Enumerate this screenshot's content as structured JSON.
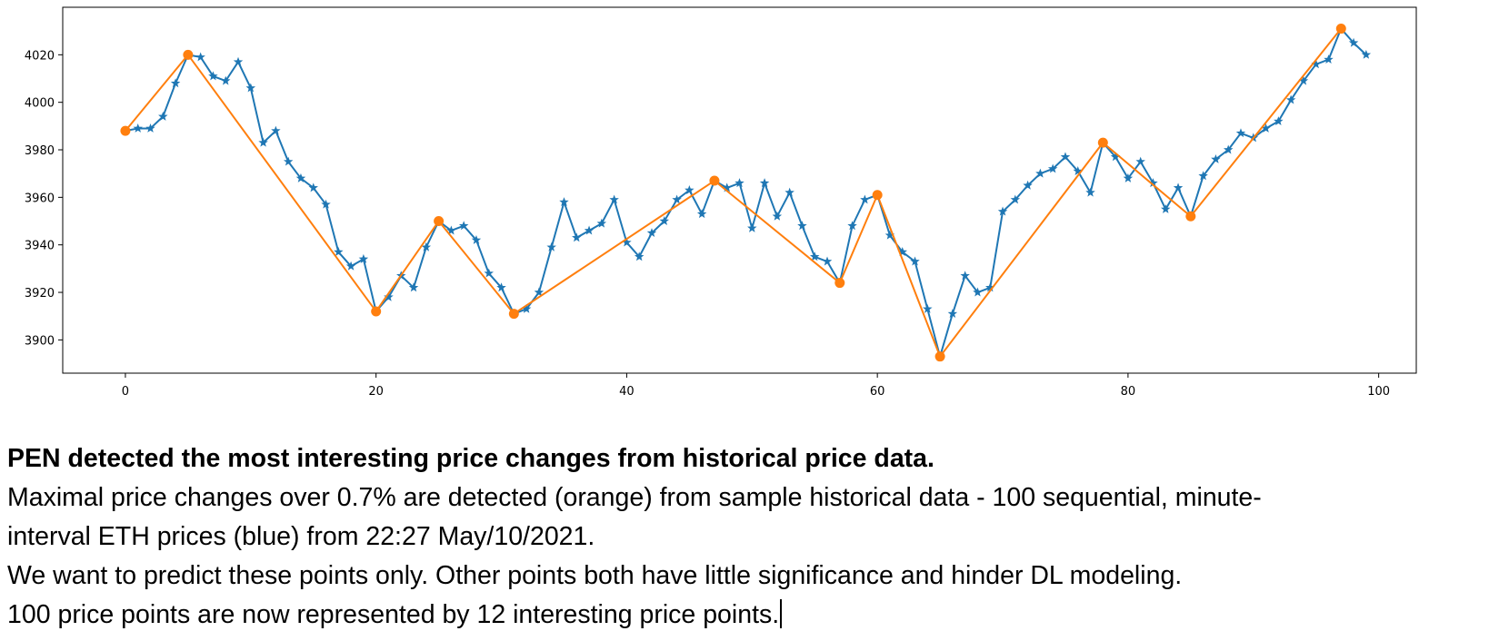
{
  "chart_data": {
    "type": "line",
    "title": "",
    "xlabel": "",
    "ylabel": "",
    "xlim": [
      -5,
      103
    ],
    "ylim": [
      3886,
      4040
    ],
    "x_ticks": [
      0,
      20,
      40,
      60,
      80,
      100
    ],
    "y_ticks": [
      3900,
      3920,
      3940,
      3960,
      3980,
      4000,
      4020
    ],
    "grid": false,
    "series": [
      {
        "color": "#1f77b4",
        "marker": "star",
        "x": [
          0,
          1,
          2,
          3,
          4,
          5,
          6,
          7,
          8,
          9,
          10,
          11,
          12,
          13,
          14,
          15,
          16,
          17,
          18,
          19,
          20,
          21,
          22,
          23,
          24,
          25,
          26,
          27,
          28,
          29,
          30,
          31,
          32,
          33,
          34,
          35,
          36,
          37,
          38,
          39,
          40,
          41,
          42,
          43,
          44,
          45,
          46,
          47,
          48,
          49,
          50,
          51,
          52,
          53,
          54,
          55,
          56,
          57,
          58,
          59,
          60,
          61,
          62,
          63,
          64,
          65,
          66,
          67,
          68,
          69,
          70,
          71,
          72,
          73,
          74,
          75,
          76,
          77,
          78,
          79,
          80,
          81,
          82,
          83,
          84,
          85,
          86,
          87,
          88,
          89,
          90,
          91,
          92,
          93,
          94,
          95,
          96,
          97,
          98,
          99
        ],
        "y": [
          3988,
          3989,
          3989,
          3994,
          4008,
          4020,
          4019,
          4011,
          4009,
          4017,
          4006,
          3983,
          3988,
          3975,
          3968,
          3964,
          3957,
          3937,
          3931,
          3934,
          3912,
          3918,
          3927,
          3922,
          3939,
          3950,
          3946,
          3948,
          3942,
          3928,
          3922,
          3911,
          3913,
          3920,
          3939,
          3958,
          3943,
          3946,
          3949,
          3959,
          3941,
          3935,
          3945,
          3950,
          3959,
          3963,
          3953,
          3967,
          3964,
          3966,
          3947,
          3966,
          3952,
          3962,
          3948,
          3935,
          3933,
          3924,
          3948,
          3959,
          3961,
          3944,
          3937,
          3933,
          3913,
          3893,
          3911,
          3927,
          3920,
          3922,
          3954,
          3959,
          3965,
          3970,
          3972,
          3977,
          3971,
          3962,
          3983,
          3977,
          3968,
          3975,
          3966,
          3955,
          3964,
          3952,
          3969,
          3976,
          3980,
          3987,
          3985,
          3989,
          3992,
          4001,
          4009,
          4016,
          4018,
          4031,
          4025,
          4020
        ]
      },
      {
        "color": "#ff7f0e",
        "marker": "circle",
        "x": [
          0,
          5,
          20,
          25,
          31,
          47,
          57,
          60,
          65,
          78,
          85,
          97
        ],
        "y": [
          3988,
          4020,
          3912,
          3950,
          3911,
          3967,
          3924,
          3961,
          3893,
          3983,
          3952,
          4031
        ]
      }
    ]
  },
  "caption": {
    "heading": "PEN detected the most interesting price changes from historical price data.",
    "line1": "Maximal price changes over 0.7% are detected (orange) from sample historical data - 100 sequential, minute-",
    "line2": "interval ETH prices (blue) from 22:27 May/10/2021.",
    "line3": "We want to predict these points only. Other points both have little significance and hinder DL modeling.",
    "line4": "100 price points are now represented by 12 interesting price points."
  }
}
